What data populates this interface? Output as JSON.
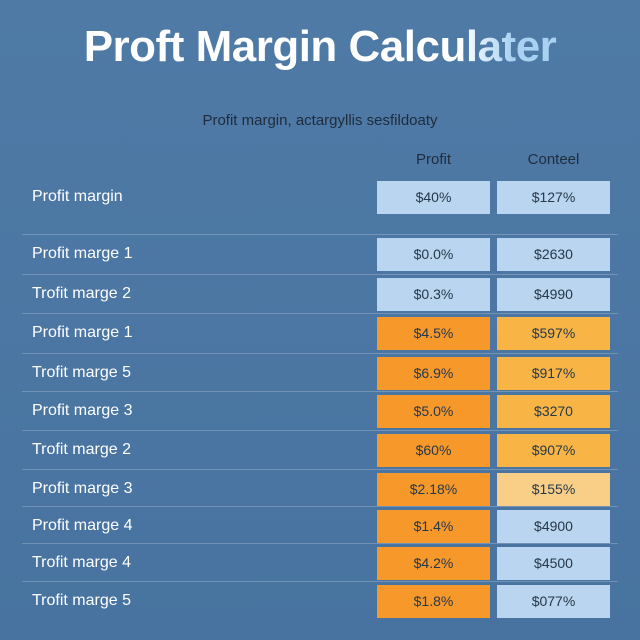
{
  "header": {
    "title": "Proft Margin Calculater",
    "subtitle": "Profit margin, actargyllis sesfildoaty"
  },
  "table": {
    "columns": [
      "Profit",
      "Conteel"
    ],
    "rows": [
      [
        "Profit margin",
        "$40%",
        "$127%"
      ],
      [
        "Profit marge 1",
        "$0.0%",
        "$2630"
      ],
      [
        "Trofit marge 2",
        "$0.3%",
        "$4990"
      ],
      [
        "Profit marge 1",
        "$4.5%",
        "$597%"
      ],
      [
        "Trofit marge 5",
        "$6.9%",
        "$917%"
      ],
      [
        "Profit marge 3",
        "$5.0%",
        "$3270"
      ],
      [
        "Trofit marge 2",
        "$60%",
        "$907%"
      ],
      [
        "Profit marge 3",
        "$2.18%",
        "$155%"
      ],
      [
        "Profit marge 4",
        "$1.4%",
        "$4900"
      ],
      [
        "Trofit marge 4",
        "$4.2%",
        "$4500"
      ],
      [
        "Trofit marge 5",
        "$1.8%",
        "$077%"
      ]
    ]
  }
}
